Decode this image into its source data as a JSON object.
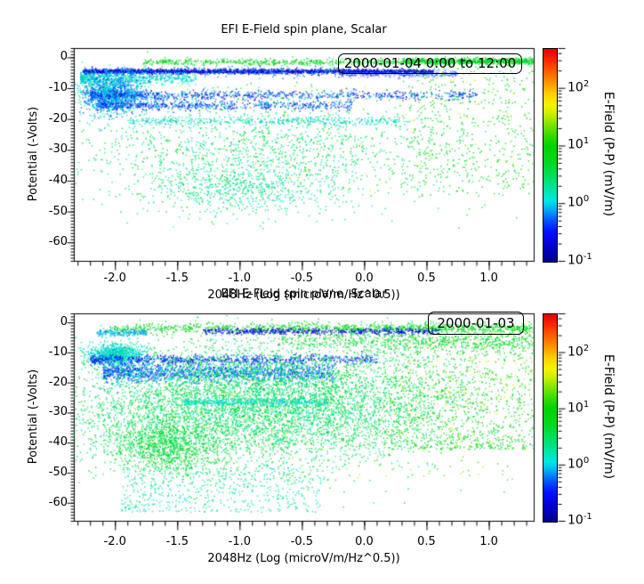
{
  "figure": {
    "background": "#ffffff",
    "axis_color": "#000000"
  },
  "colormap": {
    "stops": [
      [
        0.0,
        "#00008b"
      ],
      [
        0.07,
        "#0000cd"
      ],
      [
        0.14,
        "#0010ff"
      ],
      [
        0.2,
        "#0060ff"
      ],
      [
        0.25,
        "#00b4f0"
      ],
      [
        0.285,
        "#00e6e6"
      ],
      [
        0.33,
        "#00e6af"
      ],
      [
        0.4,
        "#00df60"
      ],
      [
        0.47,
        "#00d81e"
      ],
      [
        0.545,
        "#00d300"
      ],
      [
        0.6,
        "#3fdd00"
      ],
      [
        0.65,
        "#84e600"
      ],
      [
        0.7,
        "#d2ef00"
      ],
      [
        0.74,
        "#f6f300"
      ],
      [
        0.79,
        "#ffcf00"
      ],
      [
        0.84,
        "#ff9800"
      ],
      [
        0.9,
        "#ff5a00"
      ],
      [
        0.95,
        "#fb2800"
      ],
      [
        1.0,
        "#e60000"
      ]
    ]
  },
  "chart_data": [
    {
      "type": "scatter",
      "panel": "top",
      "title": "EFI  E-Field spin plane, Scalar",
      "xlabel": "2048Hz (Log (microV/m/Hz^0.5))",
      "ylabel": "Potential (-Volts)",
      "legend": "2000-01-04 0:00 to 12:00",
      "xlim": [
        -2.33,
        1.36
      ],
      "ylim": [
        3,
        -66
      ],
      "xticks": [
        -2.0,
        -1.5,
        -1.0,
        -0.5,
        0.0,
        0.5,
        1.0
      ],
      "xtick_labels": [
        "-2.0",
        "-1.5",
        "-1.0",
        "-0.5",
        "0.0",
        "0.5",
        "1.0"
      ],
      "yticks": [
        0,
        -10,
        -20,
        -30,
        -40,
        -50,
        -60
      ],
      "ytick_labels": [
        "0",
        "-10",
        "-20",
        "-30",
        "-40",
        "-50",
        "-60"
      ],
      "x_minor_step": 0.1,
      "y_minor_step": 1,
      "grid": false,
      "colorbar": {
        "label": "E-Field (P-P) (mV/m)",
        "log_min": -1,
        "log_max": 2.69,
        "tick_exponents": [
          -1,
          0,
          1,
          2
        ]
      },
      "clusters": [
        {
          "name": "top-green-band-left",
          "n": 500,
          "x": {
            "range": [
              -1.8,
              0.3
            ]
          },
          "y": {
            "mean": -1.4,
            "sd": 0.55
          },
          "logv": [
            0.55,
            1.05
          ]
        },
        {
          "name": "top-green-band-right",
          "n": 900,
          "x": {
            "range": [
              0.3,
              1.36
            ]
          },
          "y": {
            "mean": -1.1,
            "sd": 0.5
          },
          "logv": [
            0.5,
            1.05
          ]
        },
        {
          "name": "dense-darkblue-band",
          "n": 2000,
          "x": {
            "range": [
              -2.26,
              0.55
            ],
            "pow": 1.15
          },
          "y": {
            "mean": -4.4,
            "sd": 0.38
          },
          "logv": [
            -0.95,
            -0.35
          ]
        },
        {
          "name": "blue-fringe",
          "n": 250,
          "x": {
            "range": [
              -2.26,
              -0.2
            ]
          },
          "y": {
            "mean": -4.4,
            "sd": 0.9
          },
          "logv": [
            -0.5,
            0.1
          ]
        },
        {
          "name": "periwinkle-streak",
          "n": 450,
          "x": {
            "range": [
              -0.2,
              0.75
            ]
          },
          "y": {
            "mean": -5.2,
            "sd": 0.55
          },
          "logv": [
            -0.55,
            -0.15
          ],
          "alpha": 0.4
        },
        {
          "name": "cyan-band-left",
          "n": 550,
          "x": {
            "range": [
              -2.28,
              -1.35
            ],
            "pow": 1.6
          },
          "y": {
            "mean": -6.6,
            "sd": 0.9
          },
          "logv": [
            -0.15,
            0.35
          ]
        },
        {
          "name": "left-blob",
          "n": 1300,
          "x": {
            "mean": -2.03,
            "sd": 0.13
          },
          "y": {
            "mean": -11.5,
            "sd": 3.2
          },
          "logv": [
            -0.45,
            0.3
          ]
        },
        {
          "name": "band-minus12",
          "n": 900,
          "x": {
            "range": [
              -2.2,
              0.9
            ],
            "pow": 1.5
          },
          "y": {
            "mean": -12.1,
            "sd": 0.75
          },
          "logv": [
            -0.75,
            0.05
          ]
        },
        {
          "name": "band-minus15",
          "n": 650,
          "x": {
            "range": [
              -2.15,
              -0.1
            ],
            "pow": 1.3
          },
          "y": {
            "mean": -15.4,
            "sd": 0.8
          },
          "logv": [
            -0.7,
            0.05
          ]
        },
        {
          "name": "band-minus20",
          "n": 380,
          "x": {
            "range": [
              -1.9,
              0.35
            ]
          },
          "y": {
            "mean": -20.4,
            "sd": 0.65
          },
          "logv": [
            -0.15,
            0.4
          ]
        },
        {
          "name": "mid-cloud",
          "n": 1500,
          "x": {
            "mean": -0.75,
            "sd": 0.85
          },
          "y": {
            "mean": -30,
            "sd": 9
          },
          "logv": [
            0.1,
            0.85
          ]
        },
        {
          "name": "lower-cluster",
          "n": 550,
          "x": {
            "mean": -1.0,
            "sd": 0.4
          },
          "y": {
            "mean": -42,
            "sd": 4
          },
          "logv": [
            0.0,
            0.6
          ]
        },
        {
          "name": "right-sparse-green",
          "n": 450,
          "x": {
            "range": [
              0.35,
              1.36
            ]
          },
          "y": {
            "range": [
              -45,
              -2
            ]
          },
          "logv": [
            0.5,
            1.25
          ]
        },
        {
          "name": "rare-yellow-orange",
          "n": 80,
          "x": {
            "range": [
              -1.5,
              1.3
            ]
          },
          "y": {
            "range": [
              -45,
              -4
            ]
          },
          "logv": [
            1.25,
            1.85
          ]
        }
      ]
    },
    {
      "type": "scatter",
      "panel": "bottom",
      "title": "EFI  E-Field spin plane, Scalar",
      "xlabel": "2048Hz (Log (microV/m/Hz^0.5))",
      "ylabel": "Potential (-Volts)",
      "legend": "2000-01-03",
      "xlim": [
        -2.33,
        1.36
      ],
      "ylim": [
        3,
        -66
      ],
      "xticks": [
        -2.0,
        -1.5,
        -1.0,
        -0.5,
        0.0,
        0.5,
        1.0
      ],
      "xtick_labels": [
        "-2.0",
        "-1.5",
        "-1.0",
        "-0.5",
        "0.0",
        "0.5",
        "1.0"
      ],
      "yticks": [
        0,
        -10,
        -20,
        -30,
        -40,
        -50,
        -60
      ],
      "ytick_labels": [
        "0",
        "-10",
        "-20",
        "-30",
        "-40",
        "-50",
        "-60"
      ],
      "x_minor_step": 0.1,
      "y_minor_step": 1,
      "grid": false,
      "colorbar": {
        "label": "E-Field (P-P) (mV/m)",
        "log_min": -1,
        "log_max": 2.69,
        "tick_exponents": [
          -1,
          0,
          1,
          2
        ]
      },
      "clusters": [
        {
          "name": "top-green-band",
          "n": 1100,
          "x": {
            "range": [
              -2.05,
              1.36
            ],
            "pow": 0.8
          },
          "y": {
            "mean": -1.8,
            "sd": 0.8
          },
          "logv": [
            0.5,
            1.1
          ]
        },
        {
          "name": "darkblue-segment",
          "n": 500,
          "x": {
            "range": [
              -1.3,
              0.6
            ]
          },
          "y": {
            "mean": -2.8,
            "sd": 0.5
          },
          "logv": [
            -0.95,
            -0.4
          ]
        },
        {
          "name": "left-blue-streak",
          "n": 180,
          "x": {
            "range": [
              -2.15,
              -1.75
            ]
          },
          "y": {
            "mean": -3.2,
            "sd": 0.6
          },
          "logv": [
            -0.3,
            0.2
          ]
        },
        {
          "name": "green-band-2",
          "n": 600,
          "x": {
            "range": [
              -0.7,
              1.36
            ],
            "pow": 0.9
          },
          "y": {
            "mean": -6,
            "sd": 1.6
          },
          "logv": [
            0.45,
            1.0
          ]
        },
        {
          "name": "cyan-blob",
          "n": 900,
          "x": {
            "mean": -2.0,
            "sd": 0.11
          },
          "y": {
            "mean": -10.5,
            "sd": 1.8
          },
          "logv": [
            -0.1,
            0.35
          ]
        },
        {
          "name": "blue-band-minus12",
          "n": 800,
          "x": {
            "range": [
              -2.2,
              0.1
            ],
            "pow": 1.3
          },
          "y": {
            "mean": -12.2,
            "sd": 0.8
          },
          "logv": [
            -0.75,
            -0.1
          ]
        },
        {
          "name": "dense-bluecyan-band",
          "n": 1500,
          "x": {
            "range": [
              -2.1,
              -0.25
            ],
            "pow": 1.2
          },
          "y": {
            "mean": -16.5,
            "sd": 1.6
          },
          "logv": [
            -0.6,
            0.1
          ]
        },
        {
          "name": "main-cloud",
          "n": 6500,
          "x": {
            "mean": -0.85,
            "sd": 0.8
          },
          "y": {
            "mean": -27,
            "sd": 10
          },
          "logv": [
            0.15,
            0.85
          ]
        },
        {
          "name": "cyan-streak-minus26",
          "n": 350,
          "x": {
            "range": [
              -1.45,
              -0.3
            ]
          },
          "y": {
            "mean": -26.2,
            "sd": 0.55
          },
          "logv": [
            -0.1,
            0.3
          ]
        },
        {
          "name": "green-cluster-lowleft",
          "n": 1000,
          "x": {
            "mean": -1.6,
            "sd": 0.22
          },
          "y": {
            "mean": -41,
            "sd": 4.5
          },
          "logv": [
            0.4,
            0.9
          ]
        },
        {
          "name": "deep-sparse-tail",
          "n": 500,
          "x": {
            "range": [
              -1.95,
              -0.35
            ],
            "pow": 1.2
          },
          "y": {
            "range": [
              -63,
              -48
            ]
          },
          "logv": [
            0.0,
            0.5
          ]
        },
        {
          "name": "right-greens",
          "n": 900,
          "x": {
            "range": [
              0.15,
              1.36
            ]
          },
          "y": {
            "range": [
              -42,
              -4
            ],
            "pow": 1.4
          },
          "logv": [
            0.5,
            1.25
          ]
        },
        {
          "name": "yellow-dots-mid",
          "n": 200,
          "x": {
            "range": [
              -1.6,
              1.2
            ]
          },
          "y": {
            "range": [
              -52,
              -15
            ]
          },
          "logv": [
            1.1,
            1.65
          ]
        },
        {
          "name": "right-yellow",
          "n": 120,
          "x": {
            "range": [
              0.3,
              1.36
            ]
          },
          "y": {
            "range": [
              -30,
              -3
            ]
          },
          "logv": [
            1.2,
            1.7
          ]
        }
      ]
    }
  ]
}
